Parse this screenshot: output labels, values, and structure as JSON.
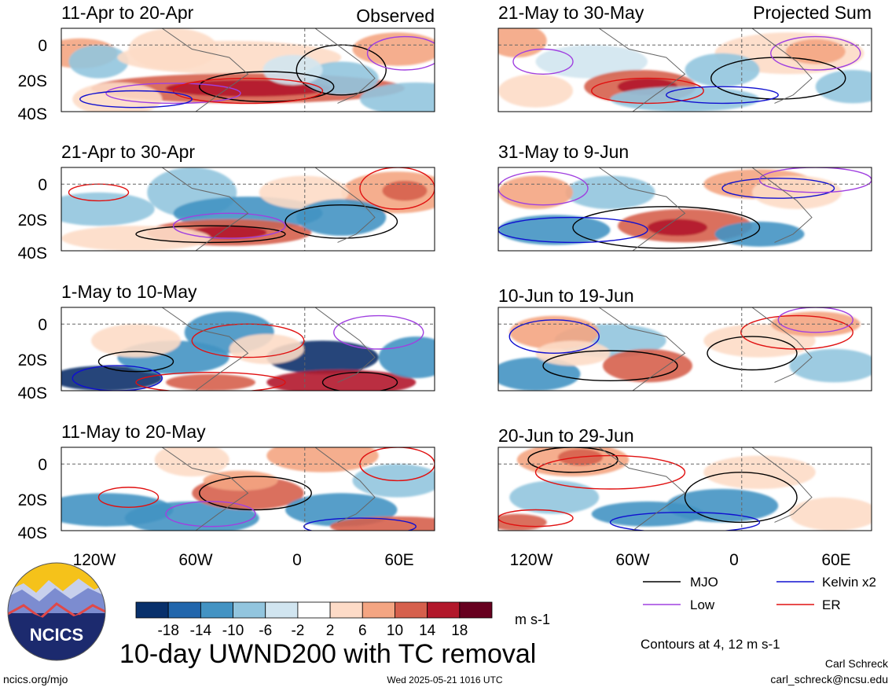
{
  "chart_data": {
    "type": "heatmap",
    "title": "10-day UWND200 with TC removal",
    "units": "m s-1",
    "column_tags": [
      "Observed",
      "Projected Sum"
    ],
    "panels": [
      {
        "title": "11-Apr to 20-Apr",
        "group": "Observed"
      },
      {
        "title": "21-Apr to 30-Apr",
        "group": "Observed"
      },
      {
        "title": "1-May to 10-May",
        "group": "Observed"
      },
      {
        "title": "11-May to 20-May",
        "group": "Observed"
      },
      {
        "title": "21-May to 30-May",
        "group": "Projected Sum"
      },
      {
        "title": "31-May to 9-Jun",
        "group": "Projected Sum"
      },
      {
        "title": "10-Jun to 19-Jun",
        "group": "Projected Sum"
      },
      {
        "title": "20-Jun to 29-Jun",
        "group": "Projected Sum"
      }
    ],
    "y_ticks": [
      "0",
      "20S",
      "40S"
    ],
    "x_ticks": [
      "120W",
      "60W",
      "0",
      "60E"
    ],
    "lat_range": [
      -40,
      10
    ],
    "lon_range": [
      -150,
      80
    ],
    "colorbar": {
      "labels": [
        "-18",
        "-14",
        "-10",
        "-6",
        "-2",
        "2",
        "6",
        "10",
        "14",
        "18"
      ],
      "colors": [
        "#08306b",
        "#2166ac",
        "#4393c3",
        "#92c5de",
        "#d1e5f0",
        "#ffffff",
        "#fddbc7",
        "#f4a582",
        "#d6604d",
        "#b2182b",
        "#67001f"
      ]
    },
    "contour_legend": [
      {
        "label": "MJO",
        "color": "#000000"
      },
      {
        "label": "Kelvin x2",
        "color": "#1010d0"
      },
      {
        "label": "Low",
        "color": "#a040e0"
      },
      {
        "label": "ER",
        "color": "#e01010"
      }
    ],
    "contours_note": "Contours at 4, 12 m s-1"
  },
  "logo": {
    "text": "NCICS"
  },
  "footer": {
    "url": "ncics.org/mjo",
    "timestamp": "Wed 2025-05-21 1016 UTC",
    "author": "Carl Schreck",
    "email": "carl_schreck@ncsu.edu"
  }
}
